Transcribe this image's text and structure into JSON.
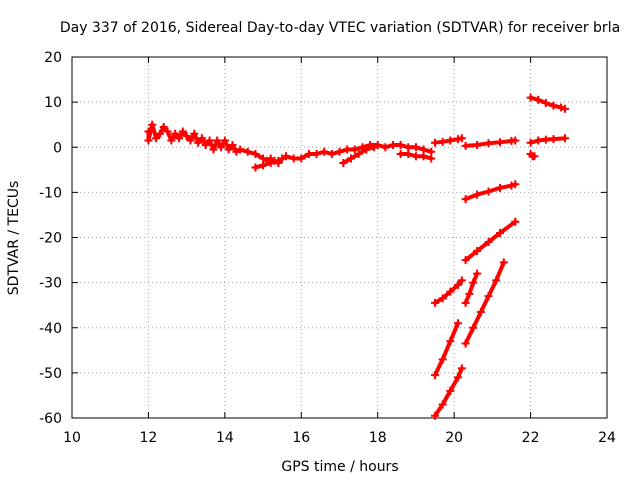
{
  "chart_data": {
    "type": "scatter",
    "title": "Day 337 of 2016, Sidereal Day-to-day VTEC variation (SDTVAR) for receiver brla",
    "xlabel": "GPS time / hours",
    "ylabel": "SDTVAR / TECUs",
    "xlim": [
      10,
      24
    ],
    "ylim": [
      -60,
      20
    ],
    "xticks": [
      "10",
      "12",
      "14",
      "16",
      "18",
      "20",
      "22",
      "24"
    ],
    "yticks": [
      "-60",
      "-50",
      "-40",
      "-30",
      "-20",
      "-10",
      "0",
      "10",
      "20"
    ],
    "grid": true,
    "marker": "plus",
    "color": "#ff0000",
    "series": [
      {
        "name": "main-band",
        "points": [
          [
            12.0,
            3.5
          ],
          [
            12.0,
            1.5
          ],
          [
            12.1,
            5.0
          ],
          [
            12.2,
            2.0
          ],
          [
            12.3,
            3.0
          ],
          [
            12.4,
            4.5
          ],
          [
            12.5,
            3.5
          ],
          [
            12.6,
            1.5
          ],
          [
            12.7,
            3.0
          ],
          [
            12.8,
            2.0
          ],
          [
            12.9,
            3.5
          ],
          [
            13.0,
            2.5
          ],
          [
            13.1,
            1.5
          ],
          [
            13.2,
            3.0
          ],
          [
            13.3,
            1.0
          ],
          [
            13.4,
            2.0
          ],
          [
            13.5,
            0.5
          ],
          [
            13.6,
            1.5
          ],
          [
            13.7,
            -0.5
          ],
          [
            13.8,
            1.5
          ],
          [
            13.9,
            0.0
          ],
          [
            14.0,
            1.5
          ],
          [
            14.1,
            -0.5
          ],
          [
            14.2,
            0.5
          ],
          [
            14.3,
            -1.0
          ],
          [
            14.4,
            -0.5
          ],
          [
            14.6,
            -1.0
          ],
          [
            14.8,
            -1.5
          ],
          [
            15.0,
            -2.5
          ],
          [
            15.1,
            -3.0
          ],
          [
            15.2,
            -2.5
          ],
          [
            15.3,
            -3.0
          ],
          [
            15.4,
            -3.5
          ],
          [
            15.5,
            -2.5
          ],
          [
            15.6,
            -2.0
          ],
          [
            15.8,
            -2.5
          ],
          [
            16.0,
            -2.5
          ],
          [
            16.2,
            -1.5
          ],
          [
            16.4,
            -1.5
          ],
          [
            16.6,
            -1.0
          ],
          [
            16.8,
            -1.5
          ],
          [
            17.0,
            -1.0
          ],
          [
            17.2,
            -0.5
          ],
          [
            17.4,
            -0.5
          ],
          [
            17.6,
            0.0
          ],
          [
            17.8,
            0.5
          ],
          [
            18.0,
            0.5
          ],
          [
            18.2,
            0.0
          ],
          [
            18.4,
            0.5
          ],
          [
            18.6,
            0.5
          ],
          [
            18.8,
            0.0
          ],
          [
            19.0,
            0.0
          ],
          [
            19.2,
            -0.5
          ],
          [
            19.4,
            -1.0
          ]
        ]
      },
      {
        "name": "lower-arm-1",
        "points": [
          [
            14.8,
            -4.5
          ],
          [
            15.0,
            -4.0
          ],
          [
            15.2,
            -3.5
          ],
          [
            15.4,
            -3.0
          ]
        ]
      },
      {
        "name": "lower-arm-2",
        "points": [
          [
            17.1,
            -3.5
          ],
          [
            17.3,
            -2.5
          ],
          [
            17.5,
            -1.5
          ],
          [
            17.7,
            -0.5
          ],
          [
            17.9,
            0.0
          ]
        ]
      },
      {
        "name": "lower-arm-3",
        "points": [
          [
            18.6,
            -1.5
          ],
          [
            18.8,
            -1.5
          ],
          [
            19.0,
            -2.0
          ],
          [
            19.2,
            -2.0
          ],
          [
            19.4,
            -2.5
          ]
        ]
      },
      {
        "name": "trace-19.5-20.2",
        "points": [
          [
            19.5,
            1.0
          ],
          [
            19.7,
            1.2
          ],
          [
            19.9,
            1.5
          ],
          [
            20.1,
            1.8
          ],
          [
            20.2,
            2.0
          ]
        ]
      },
      {
        "name": "trace-20.3-21.6",
        "points": [
          [
            20.3,
            0.3
          ],
          [
            20.6,
            0.5
          ],
          [
            20.9,
            0.9
          ],
          [
            21.2,
            1.1
          ],
          [
            21.5,
            1.4
          ],
          [
            21.6,
            1.5
          ]
        ]
      },
      {
        "name": "trace-22.0-22.9",
        "points": [
          [
            22.0,
            1.0
          ],
          [
            22.2,
            1.5
          ],
          [
            22.4,
            1.7
          ],
          [
            22.6,
            1.8
          ],
          [
            22.9,
            2.0
          ]
        ]
      },
      {
        "name": "trace-22.0-22.9-high",
        "points": [
          [
            22.0,
            11.0
          ],
          [
            22.2,
            10.5
          ],
          [
            22.4,
            9.8
          ],
          [
            22.6,
            9.2
          ],
          [
            22.8,
            8.8
          ],
          [
            22.9,
            8.5
          ]
        ]
      },
      {
        "name": "trace-22.0-22.1",
        "points": [
          [
            22.0,
            -1.5
          ],
          [
            22.05,
            -2.0
          ],
          [
            22.1,
            -2.0
          ]
        ]
      },
      {
        "name": "trace-20.3-21.6-b",
        "points": [
          [
            20.3,
            -11.5
          ],
          [
            20.6,
            -10.5
          ],
          [
            20.9,
            -9.8
          ],
          [
            21.2,
            -9.0
          ],
          [
            21.5,
            -8.5
          ],
          [
            21.6,
            -8.2
          ]
        ]
      },
      {
        "name": "trace-20.3-21.6-c",
        "points": [
          [
            20.3,
            -25.0
          ],
          [
            20.6,
            -23.0
          ],
          [
            20.9,
            -21.0
          ],
          [
            21.2,
            -19.0
          ],
          [
            21.6,
            -16.5
          ]
        ]
      },
      {
        "name": "trace-19.5-20.2-a",
        "points": [
          [
            19.5,
            -34.5
          ],
          [
            19.7,
            -33.5
          ],
          [
            19.9,
            -32.0
          ],
          [
            20.1,
            -30.5
          ],
          [
            20.2,
            -29.5
          ]
        ]
      },
      {
        "name": "trace-20.3-20.6",
        "points": [
          [
            20.3,
            -34.5
          ],
          [
            20.4,
            -32.5
          ],
          [
            20.5,
            -30.0
          ],
          [
            20.6,
            -28.0
          ]
        ]
      },
      {
        "name": "trace-20.3-21.3",
        "points": [
          [
            20.3,
            -43.5
          ],
          [
            20.5,
            -40.0
          ],
          [
            20.7,
            -36.5
          ],
          [
            20.9,
            -33.0
          ],
          [
            21.1,
            -29.5
          ],
          [
            21.3,
            -25.5
          ]
        ]
      },
      {
        "name": "trace-19.5-20.1",
        "points": [
          [
            19.5,
            -50.5
          ],
          [
            19.7,
            -47.0
          ],
          [
            19.9,
            -43.0
          ],
          [
            20.1,
            -39.0
          ]
        ]
      },
      {
        "name": "trace-19.5-20.2-b",
        "points": [
          [
            19.5,
            -59.5
          ],
          [
            19.7,
            -57.0
          ],
          [
            19.9,
            -54.0
          ],
          [
            20.1,
            -51.0
          ],
          [
            20.2,
            -49.0
          ]
        ]
      }
    ]
  }
}
